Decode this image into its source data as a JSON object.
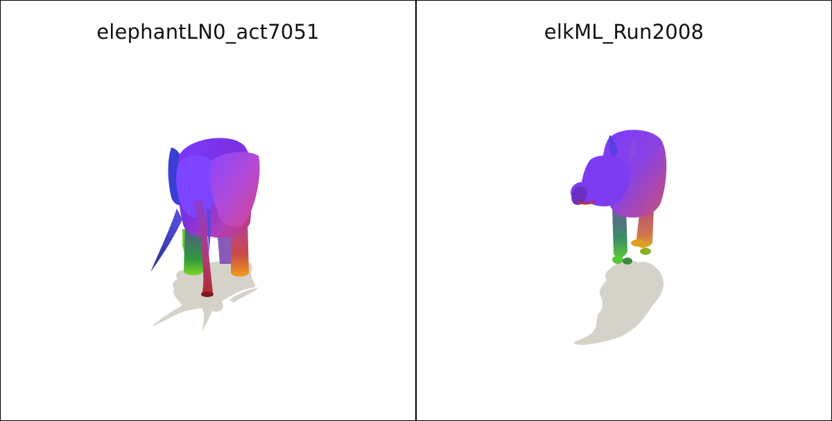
{
  "panels": [
    {
      "title": "elephantLN0_act7051"
    },
    {
      "title": "elkML_Run2008"
    }
  ]
}
